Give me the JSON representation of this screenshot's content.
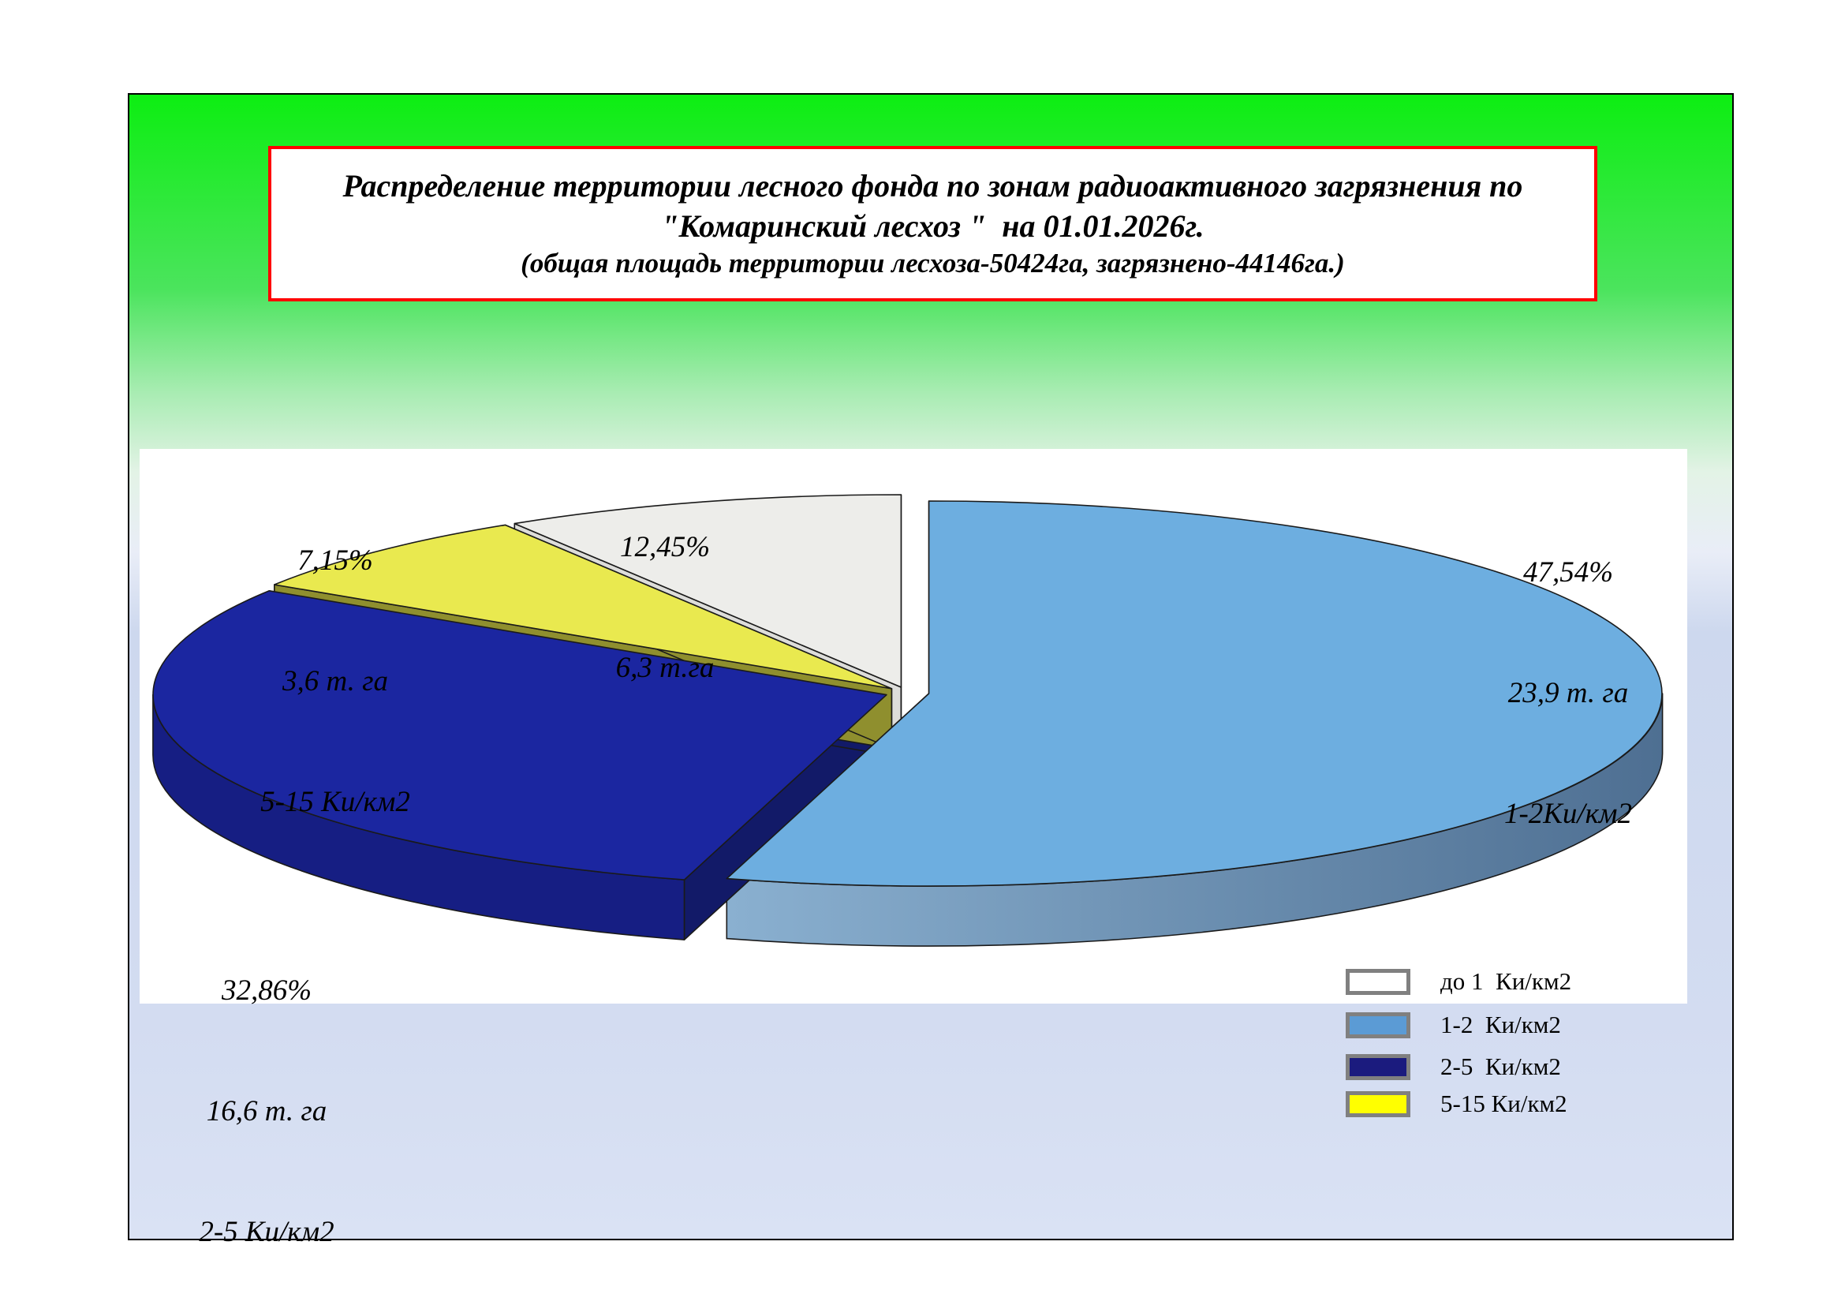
{
  "title": {
    "line1": "Распределение территории лесного фонда по зонам радиоактивного загрязнения по",
    "line2": "\"Комаринский лесхоз \"  на 01.01.2026г.",
    "line3": "(общая площадь территории лесхоза-50424га, загрязнено-44146га.)"
  },
  "chart_data": {
    "type": "pie",
    "style": "3d-exploded",
    "title": "Распределение территории лесного фонда по зонам радиоактивного загрязнения по \"Комаринский лесхоз\" на 01.01.2026г.",
    "total_area_label": "общая площадь территории лесхоза-50424га, загрязнено-44146га.",
    "legend_position": "bottom-right",
    "slices": [
      {
        "zone": "до 1  Ки/км2",
        "percent": 12.45,
        "area_thousand_ha": 6.3,
        "color_top": "#EDEDEA",
        "color_cut": "#DDDDDA",
        "color_wall": "#D6D6D2",
        "color_legend": "#FFFFFF",
        "arc": {
          "from": 328.2,
          "to": 360
        }
      },
      {
        "zone": "1-2  Ки/км2",
        "percent": 47.54,
        "area_thousand_ha": 23.9,
        "color_top": "#6DAEE0",
        "color_cut": "#6E9CC6",
        "color_wall": "gradient",
        "color_legend": "#5B9BD5",
        "arc": {
          "from": 0,
          "to": 196
        }
      },
      {
        "zone": "2-5  Ки/км2",
        "percent": 32.86,
        "area_thousand_ha": 16.6,
        "color_top": "#1B26A0",
        "color_cut": "#121A68",
        "color_wall": "#161E83",
        "color_legend": "#1B1B7E",
        "arc": {
          "from": 196,
          "to": 302.7
        }
      },
      {
        "zone": "5-15 Ки/км2",
        "percent": 7.15,
        "area_thousand_ha": 3.6,
        "color_top": "#E9E94F",
        "color_cut": "#8F8F2E",
        "color_wall": "#B8B83A",
        "color_legend": "#FFFF00",
        "arc": {
          "from": 302.7,
          "to": 328.2
        }
      }
    ],
    "wall_gradient": {
      "from": "#8AB0D0",
      "to": "#4E6F92"
    }
  },
  "labels": [
    {
      "name": "callout-do1",
      "lines": [
        "12,45%",
        "6,3 т.га",
        ""
      ]
    },
    {
      "name": "callout-5-15",
      "lines": [
        "7,15%",
        "3,6 т. га",
        "5-15 Ки/км2"
      ]
    },
    {
      "name": "callout-1-2",
      "lines": [
        "47,54%",
        "23,9 т. га",
        "1-2Ки/км2"
      ]
    },
    {
      "name": "callout-2-5",
      "lines": [
        "32,86%",
        "16,6 т. га",
        "2-5 Ки/км2"
      ]
    }
  ],
  "legend": {
    "items": [
      {
        "label": "до 1  Ки/км2"
      },
      {
        "label": "1-2  Ки/км2"
      },
      {
        "label": "2-5  Ки/км2"
      },
      {
        "label": "5-15 Ки/км2"
      }
    ]
  }
}
